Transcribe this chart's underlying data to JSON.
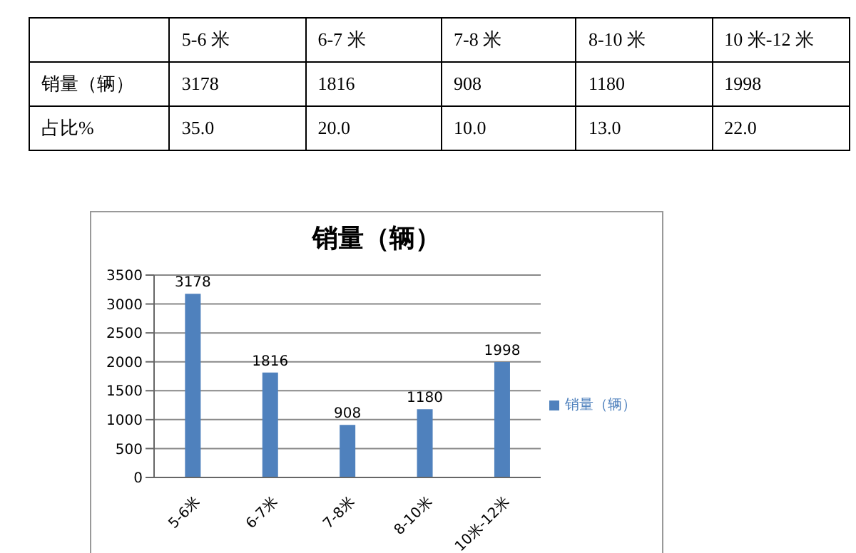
{
  "chart_data": [
    {
      "type": "other",
      "categories": [
        "5-6 米",
        "6-7 米",
        "7-8 米",
        "8-10 米",
        "10 米-12 米"
      ],
      "series": [
        {
          "name": "销量（辆）",
          "values": [
            3178,
            1816,
            908,
            1180,
            1998
          ],
          "value_labels": [
            "3178",
            "1816",
            "908",
            "1180",
            "1998"
          ]
        },
        {
          "name": "占比%",
          "values": [
            35.0,
            20.0,
            10.0,
            13.0,
            22.0
          ],
          "value_labels": [
            "35.0",
            "20.0",
            "10.0",
            "13.0",
            "22.0"
          ]
        }
      ],
      "data_labels": true
    },
    {
      "type": "bar",
      "title": "销量（辆）",
      "categories": [
        "5-6米",
        "6-7米",
        "7-8米",
        "8-10米",
        "10米-12米"
      ],
      "series": [
        {
          "name": "销量（辆）",
          "color": "#4f81bd",
          "values": [
            3178,
            1816,
            908,
            1180,
            1998
          ]
        }
      ],
      "ylim": [
        0,
        3500
      ],
      "yticks": [
        0,
        500,
        1000,
        1500,
        2000,
        2500,
        3000,
        3500
      ],
      "grid": "y",
      "legend": "right",
      "data_labels": true
    }
  ]
}
